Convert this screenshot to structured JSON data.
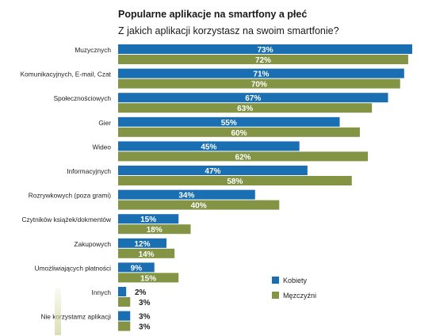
{
  "colors": {
    "kobiety": "#1a6fb3",
    "mezczyzni": "#839445"
  },
  "chart_data": {
    "type": "bar",
    "orientation": "horizontal",
    "title": "Popularne aplikacje na smartfony a płeć",
    "subtitle": "Z jakich aplikacji korzystasz na swoim smartfonie?",
    "categories": [
      "Muzycznych",
      "Komunikacyjnych, E-mail, Czat",
      "Społecznościowych",
      "Gier",
      "Wideo",
      "Informacyjnych",
      "Rozrywkowych (poza grami)",
      "Czytników książek/dokmentów",
      "Zakupowych",
      "Umożliwiających płatności",
      "Innych",
      "Nie korzystamz aplikacji"
    ],
    "series": [
      {
        "name": "Kobiety",
        "color": "#1a6fb3",
        "values": [
          73,
          71,
          67,
          55,
          45,
          47,
          34,
          15,
          12,
          9,
          2,
          3
        ]
      },
      {
        "name": "Męzczyźni",
        "color": "#839445",
        "values": [
          72,
          70,
          63,
          60,
          62,
          58,
          40,
          18,
          14,
          15,
          3,
          3
        ]
      }
    ],
    "value_labels": {
      "Kobiety": [
        "73%",
        "71%",
        "67%",
        "55%",
        "45%",
        "47%",
        "34%",
        "15%",
        "12%",
        "9%",
        "2%",
        "3%"
      ],
      "Męzczyźni": [
        "72%",
        "70%",
        "63%",
        "60%",
        "62%",
        "58%",
        "40%",
        "18%",
        "14%",
        "15%",
        "3%",
        "3%"
      ]
    },
    "xlim": [
      0,
      73
    ],
    "grid": false,
    "legend": "right"
  }
}
